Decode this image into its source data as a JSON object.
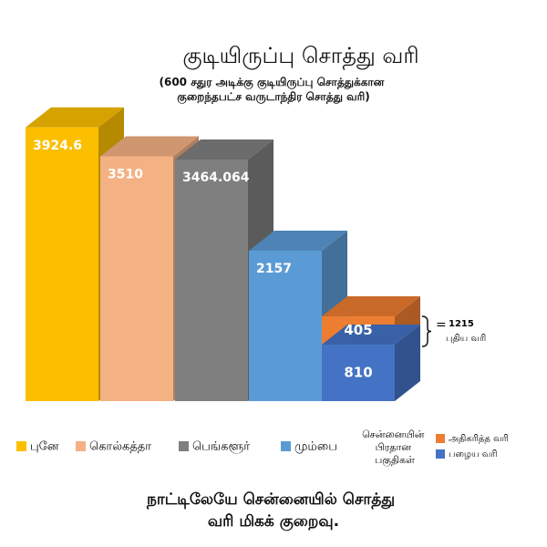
{
  "chart_data": {
    "type": "bar",
    "title": "குடியிருப்பு சொத்து வரி",
    "subtitle": "(600 சதுர அடிக்கு குடியிருப்பு சொத்துக்கான குறைந்தபட்ச வருடாந்திர சொத்து வரி)",
    "categories": [
      "புனே",
      "கொல்கத்தா",
      "பெங்களூர்",
      "மும்பை",
      "சென்னையின் பிரதான பகுதிகள்"
    ],
    "values": [
      3924.6,
      3510,
      3464.064,
      2157,
      null
    ],
    "colors": [
      "#fcbf00",
      "#f4b183",
      "#7f7f7f",
      "#5b9bd5"
    ],
    "stack_series": [
      {
        "name": "பழைய வரி",
        "color": "#4472c4",
        "value": 810
      },
      {
        "name": "அதிகரித்த வரி",
        "color": "#ed7d31",
        "value": 405
      }
    ],
    "stack_total": {
      "value": 1215,
      "label": "புதிய வரி"
    },
    "footer": "நாட்டிலேயே சென்னையில் சொத்து வரி மிகக் குறைவு."
  }
}
